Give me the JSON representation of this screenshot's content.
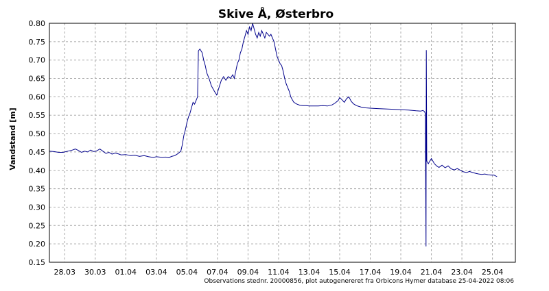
{
  "chart_data": {
    "type": "line",
    "title": "Skive Å, Østerbro",
    "ylabel": "Vandstand [m]",
    "xlabel": "",
    "footer": "Observations stednr. 20000856, plot autogenereret fra Orbicons Hymer database 25-04-2022 08:06",
    "ylim": [
      0.15,
      0.8
    ],
    "y_ticks": [
      "0.80",
      "0.75",
      "0.70",
      "0.65",
      "0.60",
      "0.55",
      "0.50",
      "0.45",
      "0.40",
      "0.35",
      "0.30",
      "0.25",
      "0.20",
      "0.15"
    ],
    "x_ticks": [
      {
        "label": "28.03",
        "day": 1.0
      },
      {
        "label": "30.03",
        "day": 3.0
      },
      {
        "label": "01.04",
        "day": 5.0
      },
      {
        "label": "03.04",
        "day": 7.0
      },
      {
        "label": "05.04",
        "day": 9.0
      },
      {
        "label": "07.04",
        "day": 11.0
      },
      {
        "label": "09.04",
        "day": 13.0
      },
      {
        "label": "11.04",
        "day": 15.0
      },
      {
        "label": "13.04",
        "day": 17.0
      },
      {
        "label": "15.04",
        "day": 19.0
      },
      {
        "label": "17.04",
        "day": 21.0
      },
      {
        "label": "19.04",
        "day": 23.0
      },
      {
        "label": "21.04",
        "day": 25.0
      },
      {
        "label": "23.04",
        "day": 27.0
      },
      {
        "label": "25.04",
        "day": 29.0
      }
    ],
    "xlim_days": [
      0.0,
      30.5
    ],
    "x_unit_note": "",
    "grid": true,
    "series": [
      {
        "name": "",
        "color": "#00008b",
        "points": [
          [
            0.0,
            0.452
          ],
          [
            0.3,
            0.451
          ],
          [
            0.6,
            0.449
          ],
          [
            0.9,
            0.449
          ],
          [
            1.2,
            0.452
          ],
          [
            1.5,
            0.455
          ],
          [
            1.7,
            0.458
          ],
          [
            1.9,
            0.454
          ],
          [
            2.1,
            0.449
          ],
          [
            2.3,
            0.452
          ],
          [
            2.5,
            0.45
          ],
          [
            2.7,
            0.455
          ],
          [
            2.9,
            0.451
          ],
          [
            3.1,
            0.453
          ],
          [
            3.3,
            0.458
          ],
          [
            3.5,
            0.452
          ],
          [
            3.7,
            0.446
          ],
          [
            3.9,
            0.449
          ],
          [
            4.1,
            0.444
          ],
          [
            4.3,
            0.447
          ],
          [
            4.5,
            0.445
          ],
          [
            4.7,
            0.442
          ],
          [
            5.0,
            0.443
          ],
          [
            5.3,
            0.44
          ],
          [
            5.6,
            0.441
          ],
          [
            5.9,
            0.438
          ],
          [
            6.2,
            0.44
          ],
          [
            6.5,
            0.437
          ],
          [
            6.8,
            0.435
          ],
          [
            7.0,
            0.437
          ],
          [
            7.2,
            0.436
          ],
          [
            7.4,
            0.435
          ],
          [
            7.6,
            0.436
          ],
          [
            7.8,
            0.434
          ],
          [
            8.0,
            0.438
          ],
          [
            8.2,
            0.44
          ],
          [
            8.4,
            0.445
          ],
          [
            8.6,
            0.452
          ],
          [
            8.7,
            0.47
          ],
          [
            8.8,
            0.495
          ],
          [
            8.9,
            0.51
          ],
          [
            9.0,
            0.53
          ],
          [
            9.1,
            0.545
          ],
          [
            9.2,
            0.555
          ],
          [
            9.3,
            0.57
          ],
          [
            9.4,
            0.585
          ],
          [
            9.5,
            0.58
          ],
          [
            9.6,
            0.59
          ],
          [
            9.7,
            0.6
          ],
          [
            9.75,
            0.725
          ],
          [
            9.85,
            0.73
          ],
          [
            10.0,
            0.72
          ],
          [
            10.1,
            0.7
          ],
          [
            10.2,
            0.685
          ],
          [
            10.3,
            0.665
          ],
          [
            10.45,
            0.65
          ],
          [
            10.6,
            0.63
          ],
          [
            10.8,
            0.615
          ],
          [
            10.95,
            0.605
          ],
          [
            11.1,
            0.625
          ],
          [
            11.25,
            0.645
          ],
          [
            11.4,
            0.655
          ],
          [
            11.55,
            0.645
          ],
          [
            11.7,
            0.655
          ],
          [
            11.85,
            0.65
          ],
          [
            12.0,
            0.66
          ],
          [
            12.1,
            0.65
          ],
          [
            12.2,
            0.67
          ],
          [
            12.3,
            0.69
          ],
          [
            12.4,
            0.7
          ],
          [
            12.5,
            0.72
          ],
          [
            12.6,
            0.73
          ],
          [
            12.7,
            0.75
          ],
          [
            12.8,
            0.765
          ],
          [
            12.9,
            0.78
          ],
          [
            13.0,
            0.77
          ],
          [
            13.1,
            0.79
          ],
          [
            13.2,
            0.78
          ],
          [
            13.3,
            0.8
          ],
          [
            13.4,
            0.785
          ],
          [
            13.5,
            0.77
          ],
          [
            13.6,
            0.76
          ],
          [
            13.7,
            0.775
          ],
          [
            13.8,
            0.765
          ],
          [
            13.9,
            0.78
          ],
          [
            14.0,
            0.77
          ],
          [
            14.1,
            0.76
          ],
          [
            14.2,
            0.775
          ],
          [
            14.3,
            0.77
          ],
          [
            14.4,
            0.765
          ],
          [
            14.5,
            0.77
          ],
          [
            14.6,
            0.76
          ],
          [
            14.7,
            0.75
          ],
          [
            14.8,
            0.73
          ],
          [
            14.9,
            0.71
          ],
          [
            15.0,
            0.7
          ],
          [
            15.1,
            0.69
          ],
          [
            15.2,
            0.685
          ],
          [
            15.3,
            0.67
          ],
          [
            15.4,
            0.65
          ],
          [
            15.5,
            0.635
          ],
          [
            15.6,
            0.625
          ],
          [
            15.7,
            0.615
          ],
          [
            15.8,
            0.6
          ],
          [
            15.9,
            0.592
          ],
          [
            16.0,
            0.585
          ],
          [
            16.2,
            0.58
          ],
          [
            16.4,
            0.577
          ],
          [
            16.6,
            0.576
          ],
          [
            16.8,
            0.576
          ],
          [
            17.0,
            0.575
          ],
          [
            17.3,
            0.575
          ],
          [
            17.6,
            0.575
          ],
          [
            17.9,
            0.576
          ],
          [
            18.2,
            0.575
          ],
          [
            18.5,
            0.578
          ],
          [
            18.7,
            0.583
          ],
          [
            18.9,
            0.59
          ],
          [
            19.0,
            0.598
          ],
          [
            19.15,
            0.592
          ],
          [
            19.3,
            0.585
          ],
          [
            19.45,
            0.595
          ],
          [
            19.6,
            0.6
          ],
          [
            19.75,
            0.588
          ],
          [
            19.9,
            0.581
          ],
          [
            20.1,
            0.576
          ],
          [
            20.4,
            0.572
          ],
          [
            20.7,
            0.57
          ],
          [
            21.0,
            0.569
          ],
          [
            21.5,
            0.568
          ],
          [
            22.0,
            0.567
          ],
          [
            22.5,
            0.566
          ],
          [
            23.0,
            0.565
          ],
          [
            23.5,
            0.564
          ],
          [
            24.0,
            0.562
          ],
          [
            24.3,
            0.561
          ],
          [
            24.45,
            0.563
          ],
          [
            24.55,
            0.56
          ],
          [
            24.6,
            0.555
          ],
          [
            24.65,
            0.193
          ],
          [
            24.67,
            0.727
          ],
          [
            24.7,
            0.425
          ],
          [
            24.8,
            0.418
          ],
          [
            24.9,
            0.425
          ],
          [
            25.0,
            0.432
          ],
          [
            25.1,
            0.425
          ],
          [
            25.2,
            0.418
          ],
          [
            25.35,
            0.412
          ],
          [
            25.5,
            0.408
          ],
          [
            25.7,
            0.414
          ],
          [
            25.9,
            0.407
          ],
          [
            26.1,
            0.412
          ],
          [
            26.3,
            0.404
          ],
          [
            26.5,
            0.401
          ],
          [
            26.7,
            0.405
          ],
          [
            26.9,
            0.4
          ],
          [
            27.1,
            0.396
          ],
          [
            27.3,
            0.394
          ],
          [
            27.5,
            0.397
          ],
          [
            27.7,
            0.394
          ],
          [
            27.9,
            0.392
          ],
          [
            28.1,
            0.39
          ],
          [
            28.3,
            0.389
          ],
          [
            28.5,
            0.39
          ],
          [
            28.7,
            0.388
          ],
          [
            28.9,
            0.387
          ],
          [
            29.1,
            0.387
          ],
          [
            29.3,
            0.383
          ]
        ]
      }
    ]
  }
}
